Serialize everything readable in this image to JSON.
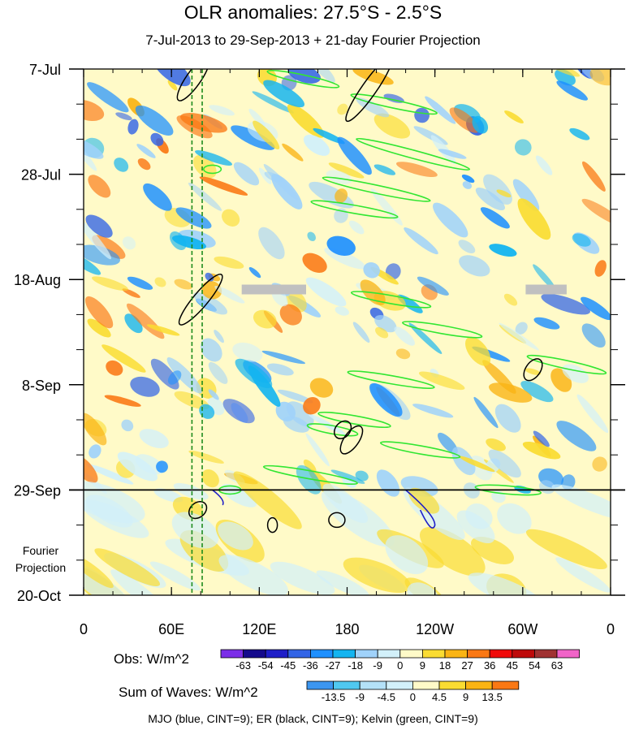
{
  "chart_data": {
    "type": "heatmap",
    "title": "OLR anomalies: 27.5°S - 2.5°S",
    "subtitle": "7-Jul-2013 to 29-Sep-2013 + 21-day Fourier Projection",
    "x_tick_labels": [
      "0",
      "60E",
      "120E",
      "180",
      "120W",
      "60W",
      "0"
    ],
    "x_tick_values_deg_east": [
      0,
      60,
      120,
      180,
      240,
      300,
      360
    ],
    "y_tick_labels": [
      "7-Jul",
      "28-Jul",
      "18-Aug",
      "8-Sep",
      "29-Sep",
      "20-Oct"
    ],
    "y_tick_values_day": [
      0,
      21,
      42,
      63,
      84,
      105
    ],
    "xlim": [
      0,
      360
    ],
    "ylim_days": [
      0,
      105
    ],
    "observation_end_day": 84,
    "projection_label": [
      "Fourier",
      "Projection"
    ],
    "obs_colorbar": {
      "label": "Obs: W/m^2",
      "levels": [
        -63,
        -54,
        -45,
        -36,
        -27,
        -18,
        -9,
        0,
        9,
        18,
        27,
        36,
        45,
        54,
        63
      ],
      "colors": [
        "#7b2ee8",
        "#140a8c",
        "#1e1ec8",
        "#3264e6",
        "#1e90ff",
        "#14b4f0",
        "#a0d2fa",
        "#d2f0fa",
        "#fffac8",
        "#fadc32",
        "#fab414",
        "#fa7814",
        "#f00a0a",
        "#be0a0a",
        "#a03232",
        "#f064c8"
      ]
    },
    "waves_colorbar": {
      "label": "Sum of Waves: W/m^2",
      "levels": [
        -13.5,
        -9,
        -4.5,
        0,
        4.5,
        9,
        13.5
      ],
      "colors": [
        "#3c96f0",
        "#50c8f0",
        "#b4e1f8",
        "#d2f0fa",
        "#fffac8",
        "#fadc32",
        "#fab414",
        "#fa7814"
      ]
    },
    "overlay_note": "MJO (blue, CINT=9); ER (black, CINT=9); Kelvin (green, CINT=9)",
    "reference_lines_deg_east": [
      74,
      81
    ]
  }
}
